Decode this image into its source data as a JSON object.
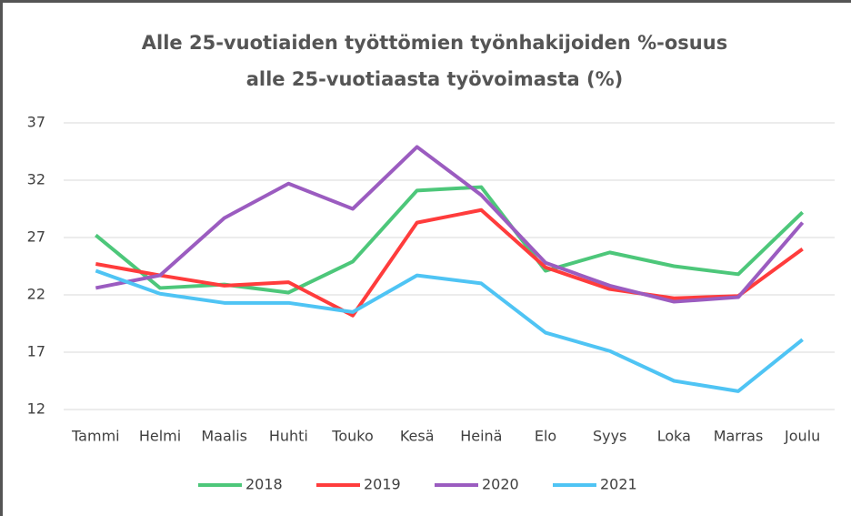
{
  "chart_data": {
    "type": "line",
    "title": [
      "Alle 25-vuotiaiden työttömien työnhakijoiden %-osuus",
      "alle 25-vuotiaasta työvoimasta (%)"
    ],
    "categories": [
      "Tammi",
      "Helmi",
      "Maalis",
      "Huhti",
      "Touko",
      "Kesä",
      "Heinä",
      "Elo",
      "Syys",
      "Loka",
      "Marras",
      "Joulu"
    ],
    "series": [
      {
        "name": "2018",
        "color": "#4dc77a",
        "values": [
          27.2,
          22.6,
          22.9,
          22.2,
          24.9,
          31.1,
          31.4,
          24.1,
          25.7,
          24.5,
          23.8,
          29.2
        ]
      },
      {
        "name": "2019",
        "color": "#ff3c3c",
        "values": [
          24.7,
          23.7,
          22.8,
          23.1,
          20.2,
          28.3,
          29.4,
          24.4,
          22.5,
          21.7,
          21.9,
          26.0
        ]
      },
      {
        "name": "2020",
        "color": "#9b5cc0",
        "values": [
          22.6,
          23.7,
          28.7,
          31.7,
          29.5,
          34.9,
          30.7,
          24.8,
          22.8,
          21.4,
          21.8,
          28.3
        ]
      },
      {
        "name": "2021",
        "color": "#4fc4f4",
        "values": [
          24.1,
          22.1,
          21.3,
          21.3,
          20.5,
          23.7,
          23.0,
          18.7,
          17.1,
          14.5,
          13.6,
          18.1
        ]
      }
    ],
    "ylim": [
      12,
      37
    ],
    "yticks": [
      12,
      17,
      22,
      27,
      32,
      37
    ],
    "grid": true,
    "legend": "bottom"
  }
}
